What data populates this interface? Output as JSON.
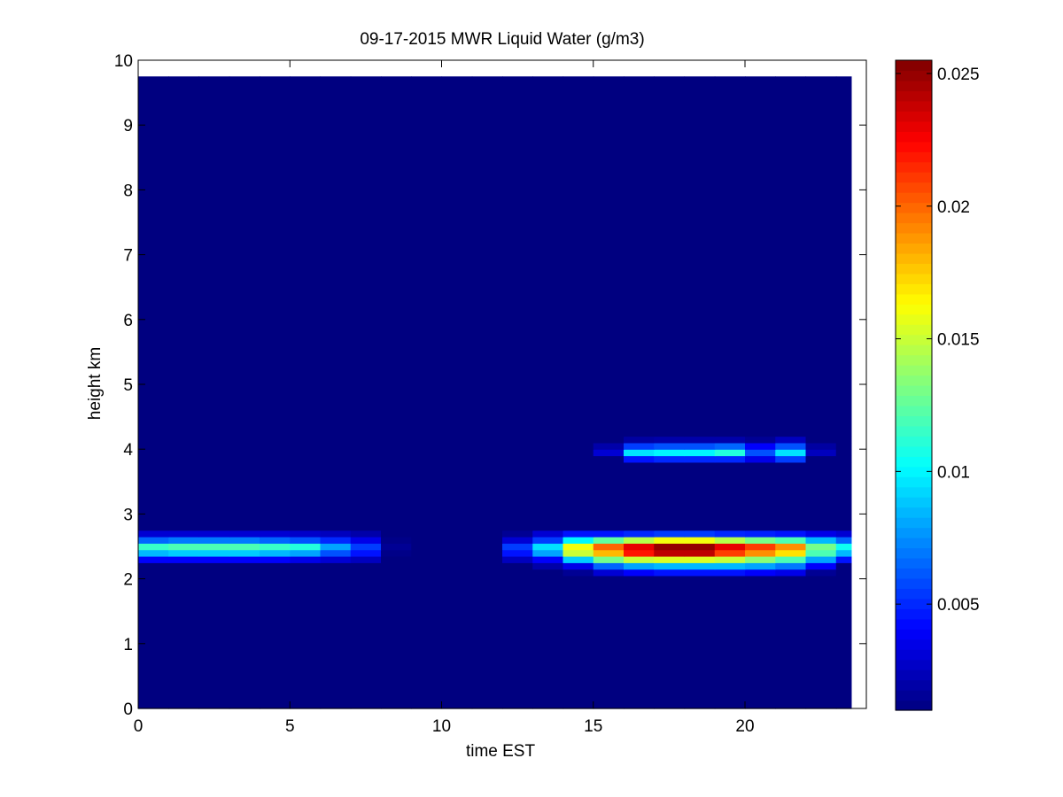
{
  "chart_data": {
    "type": "heatmap",
    "title": "09-17-2015 MWR Liquid Water (g/m3)",
    "xlabel": "time EST",
    "ylabel": "height km",
    "xlim": [
      0,
      24
    ],
    "ylim": [
      0,
      10
    ],
    "x_ticks": [
      "0",
      "5",
      "10",
      "15",
      "20"
    ],
    "y_ticks": [
      "0",
      "1",
      "2",
      "3",
      "4",
      "5",
      "6",
      "7",
      "8",
      "9",
      "10"
    ],
    "colormap": "jet",
    "colorbar": {
      "range": [
        0.001,
        0.0255
      ],
      "ticks": [
        "0.005",
        "0.01",
        "0.015",
        "0.02",
        "0.025"
      ]
    },
    "x_edges": [
      0,
      1,
      2,
      3,
      4,
      5,
      6,
      7,
      8,
      9,
      10,
      11,
      12,
      13,
      14,
      15,
      16,
      17,
      18,
      19,
      20,
      21,
      22,
      23,
      23.5
    ],
    "y_edges": [
      0,
      2.05,
      2.15,
      2.25,
      2.35,
      2.45,
      2.55,
      2.65,
      2.75,
      3.8,
      3.9,
      4.0,
      4.1,
      4.2,
      9.75
    ],
    "background_value": 0.001,
    "values": [
      [
        0.001,
        0.001,
        0.001,
        0.001,
        0.001,
        0.001,
        0.001,
        0.001,
        0.001,
        0.001,
        0.001,
        0.001,
        0.001,
        0.001,
        0.001,
        0.001,
        0.001,
        0.001,
        0.001,
        0.001,
        0.001,
        0.001,
        0.001,
        0.001
      ],
      [
        0.001,
        0.001,
        0.001,
        0.001,
        0.001,
        0.001,
        0.001,
        0.001,
        0.001,
        0.001,
        0.001,
        0.001,
        0.001,
        0.001,
        0.0015,
        0.003,
        0.004,
        0.0045,
        0.0045,
        0.0045,
        0.004,
        0.0035,
        0.0015,
        0.001
      ],
      [
        0.001,
        0.001,
        0.001,
        0.001,
        0.001,
        0.001,
        0.001,
        0.001,
        0.001,
        0.001,
        0.001,
        0.001,
        0.001,
        0.002,
        0.0035,
        0.0065,
        0.008,
        0.0085,
        0.0085,
        0.0085,
        0.008,
        0.007,
        0.004,
        0.001
      ],
      [
        0.004,
        0.004,
        0.004,
        0.004,
        0.004,
        0.0035,
        0.003,
        0.0025,
        0.001,
        0.001,
        0.001,
        0.001,
        0.0025,
        0.004,
        0.009,
        0.013,
        0.015,
        0.0155,
        0.0155,
        0.015,
        0.0135,
        0.012,
        0.008,
        0.0045
      ],
      [
        0.0085,
        0.009,
        0.009,
        0.009,
        0.0085,
        0.008,
        0.006,
        0.0045,
        0.0012,
        0.001,
        0.001,
        0.001,
        0.0045,
        0.008,
        0.015,
        0.018,
        0.022,
        0.024,
        0.024,
        0.021,
        0.019,
        0.017,
        0.012,
        0.0085
      ],
      [
        0.0115,
        0.012,
        0.012,
        0.012,
        0.0115,
        0.011,
        0.008,
        0.0055,
        0.0015,
        0.001,
        0.001,
        0.001,
        0.0055,
        0.0095,
        0.016,
        0.02,
        0.023,
        0.025,
        0.025,
        0.023,
        0.021,
        0.019,
        0.013,
        0.0105
      ],
      [
        0.0065,
        0.007,
        0.007,
        0.007,
        0.0065,
        0.006,
        0.005,
        0.0035,
        0.0012,
        0.001,
        0.001,
        0.001,
        0.003,
        0.0055,
        0.01,
        0.0125,
        0.0145,
        0.016,
        0.016,
        0.0145,
        0.013,
        0.012,
        0.0085,
        0.0065
      ],
      [
        0.003,
        0.003,
        0.003,
        0.003,
        0.003,
        0.0028,
        0.0025,
        0.002,
        0.001,
        0.001,
        0.001,
        0.001,
        0.0015,
        0.003,
        0.0045,
        0.0045,
        0.005,
        0.0055,
        0.0055,
        0.005,
        0.0048,
        0.0045,
        0.0035,
        0.003
      ],
      [
        0.001,
        0.001,
        0.001,
        0.001,
        0.001,
        0.001,
        0.001,
        0.001,
        0.001,
        0.001,
        0.001,
        0.001,
        0.001,
        0.001,
        0.001,
        0.001,
        0.001,
        0.001,
        0.001,
        0.001,
        0.001,
        0.001,
        0.001,
        0.001
      ],
      [
        0.001,
        0.001,
        0.001,
        0.001,
        0.001,
        0.001,
        0.001,
        0.001,
        0.001,
        0.001,
        0.001,
        0.001,
        0.001,
        0.001,
        0.001,
        0.001,
        0.0045,
        0.005,
        0.005,
        0.005,
        0.0035,
        0.0055,
        0.001,
        0.001
      ],
      [
        0.001,
        0.001,
        0.001,
        0.001,
        0.001,
        0.001,
        0.001,
        0.001,
        0.001,
        0.001,
        0.001,
        0.001,
        0.001,
        0.001,
        0.001,
        0.003,
        0.0095,
        0.01,
        0.01,
        0.011,
        0.006,
        0.0095,
        0.0025,
        0.001
      ],
      [
        0.001,
        0.001,
        0.001,
        0.001,
        0.001,
        0.001,
        0.001,
        0.001,
        0.001,
        0.001,
        0.001,
        0.001,
        0.001,
        0.001,
        0.001,
        0.002,
        0.0055,
        0.006,
        0.006,
        0.0065,
        0.004,
        0.006,
        0.0018,
        0.001
      ],
      [
        0.001,
        0.001,
        0.001,
        0.001,
        0.001,
        0.001,
        0.001,
        0.001,
        0.001,
        0.001,
        0.001,
        0.001,
        0.001,
        0.001,
        0.001,
        0.001,
        0.0018,
        0.002,
        0.002,
        0.002,
        0.0015,
        0.0025,
        0.001,
        0.001
      ],
      [
        0.001,
        0.001,
        0.001,
        0.001,
        0.001,
        0.001,
        0.001,
        0.001,
        0.001,
        0.001,
        0.001,
        0.001,
        0.001,
        0.001,
        0.001,
        0.001,
        0.001,
        0.001,
        0.001,
        0.001,
        0.001,
        0.001,
        0.001,
        0.001
      ]
    ]
  }
}
